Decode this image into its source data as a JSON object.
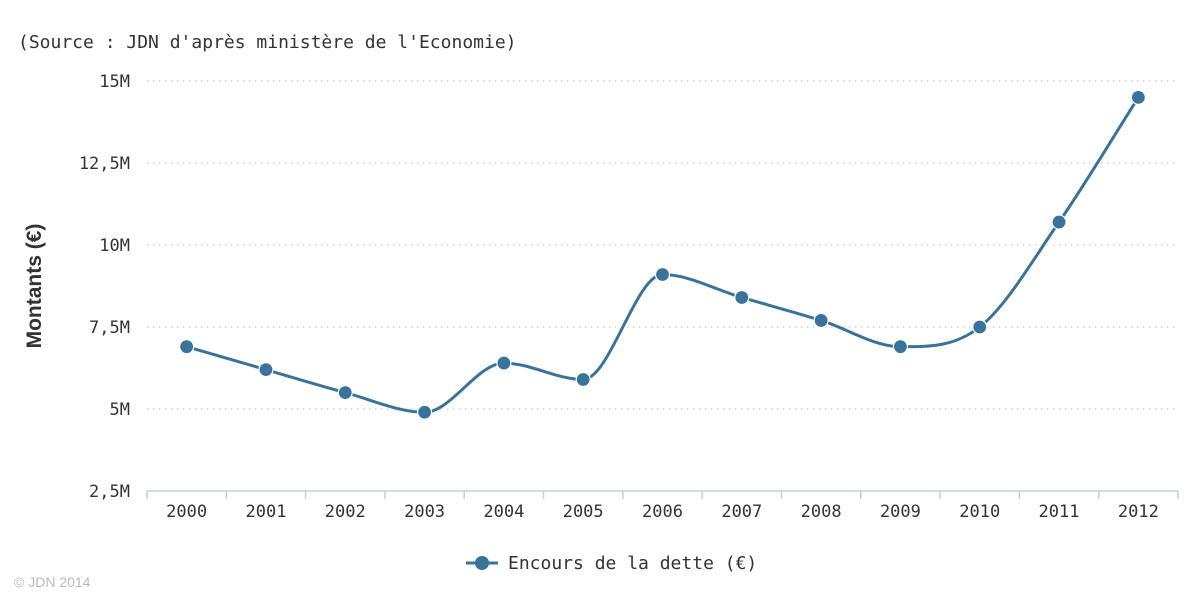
{
  "colors": {
    "series": "#39739c",
    "grid": "#c8c8c8",
    "axis": "#c0d0e0",
    "text": "#333333",
    "credit": "#bbbbbb"
  },
  "source_note": "(Source : JDN d'après ministère de l'Economie)",
  "credit": "© JDN 2014",
  "chart_data": {
    "type": "line",
    "smooth": true,
    "ylabel": "Montants (€)",
    "ylim": [
      2.5,
      15
    ],
    "y_ticks": [
      2.5,
      5,
      7.5,
      10,
      12.5,
      15
    ],
    "y_tick_labels": [
      "2,5M",
      "5M",
      "7,5M",
      "10M",
      "12,5M",
      "15M"
    ],
    "grid": "horizontal dotted",
    "legend": "bottom-center",
    "categories": [
      "2000",
      "2001",
      "2002",
      "2003",
      "2004",
      "2005",
      "2006",
      "2007",
      "2008",
      "2009",
      "2010",
      "2011",
      "2012"
    ],
    "series": [
      {
        "name": "Encours de la dette (€)",
        "values": [
          6.9,
          6.2,
          5.5,
          4.9,
          6.4,
          5.9,
          9.1,
          8.4,
          7.7,
          6.9,
          7.5,
          10.7,
          14.5
        ]
      }
    ]
  }
}
